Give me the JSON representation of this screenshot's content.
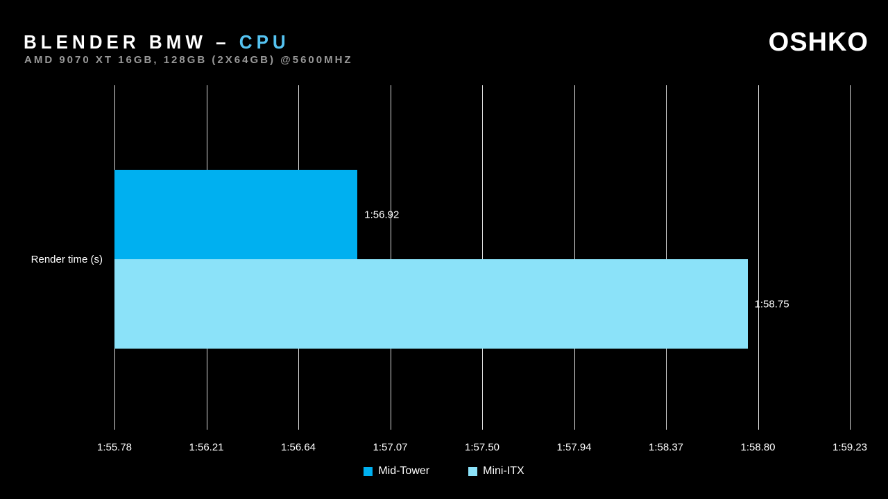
{
  "header": {
    "logo": "OSHKO"
  },
  "chart_data": {
    "type": "bar",
    "orientation": "horizontal",
    "title": {
      "main": "BLENDER BMW –",
      "accent": "CPU"
    },
    "subtitle": "AMD 9070 XT 16GB, 128GB (2X64GB) @5600MHZ",
    "category_label": "Render time (s)",
    "axis": {
      "min_seconds": 115.78,
      "max_seconds": 119.23,
      "tick_labels": [
        "1:55.78",
        "1:56.21",
        "1:56.64",
        "1:57.07",
        "1:57.50",
        "1:57.94",
        "1:58.37",
        "1:58.80",
        "1:59.23"
      ],
      "grid": true
    },
    "series": [
      {
        "name": "Mid-Tower",
        "value_seconds": 116.92,
        "value_label": "1:56.92",
        "color": "#00B0F0"
      },
      {
        "name": "Mini-ITX",
        "value_seconds": 118.75,
        "value_label": "1:58.75",
        "color": "#8BE2F9"
      }
    ],
    "legend_position": "bottom-center",
    "colors": {
      "background": "#000000",
      "title_accent": "#55C3F1",
      "subtitle": "#999999",
      "gridline": "#DCDCDC",
      "text": "#FFFFFF"
    }
  }
}
